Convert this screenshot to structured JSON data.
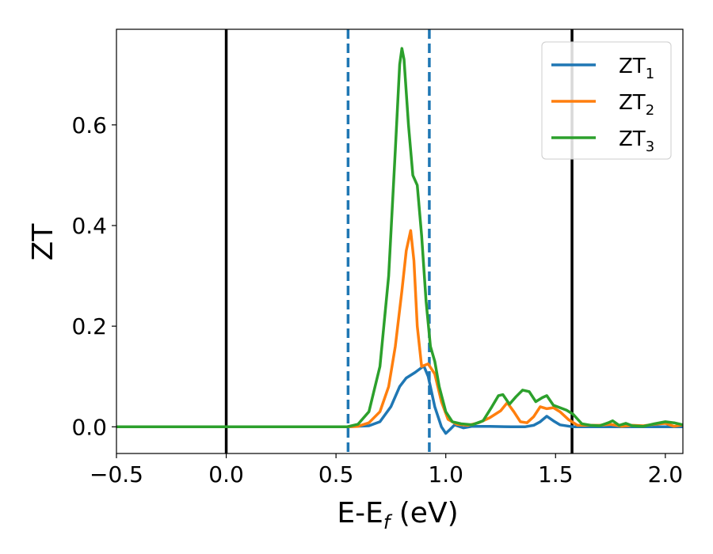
{
  "chart_data": {
    "type": "line",
    "xlabel_main": "E-E",
    "xlabel_sub": "f",
    "xlabel_unit": " (eV)",
    "ylabel": "ZT",
    "xlim": [
      -0.5,
      2.08
    ],
    "ylim": [
      -0.053,
      0.79
    ],
    "xticks": [
      -0.5,
      0.0,
      0.5,
      1.0,
      1.5,
      2.0
    ],
    "xtick_labels": [
      "−0.5",
      "0.0",
      "0.5",
      "1.0",
      "1.5",
      "2.0"
    ],
    "yticks": [
      0.0,
      0.2,
      0.4,
      0.6
    ],
    "ytick_labels": [
      "0.0",
      "0.2",
      "0.4",
      "0.6"
    ],
    "grid": false,
    "legend_position": "top-right",
    "vlines": [
      {
        "x": 0.0,
        "style": "solid",
        "color": "#000000"
      },
      {
        "x": 1.575,
        "style": "solid",
        "color": "#000000"
      },
      {
        "x": 0.555,
        "style": "dashed",
        "color": "#1f77b4"
      },
      {
        "x": 0.925,
        "style": "dashed",
        "color": "#1f77b4"
      }
    ],
    "series": [
      {
        "name": "ZT",
        "sub": "1",
        "color": "#1f77b4",
        "points": [
          [
            -0.5,
            0
          ],
          [
            0.55,
            0
          ],
          [
            0.65,
            0.002
          ],
          [
            0.7,
            0.01
          ],
          [
            0.75,
            0.04
          ],
          [
            0.79,
            0.08
          ],
          [
            0.82,
            0.097
          ],
          [
            0.86,
            0.108
          ],
          [
            0.9,
            0.121
          ],
          [
            0.92,
            0.1
          ],
          [
            0.95,
            0.04
          ],
          [
            0.98,
            0.0
          ],
          [
            1.0,
            -0.013
          ],
          [
            1.02,
            -0.005
          ],
          [
            1.04,
            0.004
          ],
          [
            1.08,
            -0.002
          ],
          [
            1.12,
            0.001
          ],
          [
            1.2,
            0.001
          ],
          [
            1.3,
            0.0
          ],
          [
            1.36,
            0.0
          ],
          [
            1.4,
            0.003
          ],
          [
            1.43,
            0.01
          ],
          [
            1.46,
            0.021
          ],
          [
            1.49,
            0.012
          ],
          [
            1.52,
            0.004
          ],
          [
            1.58,
            0.0
          ],
          [
            2.08,
            0.0
          ]
        ]
      },
      {
        "name": "ZT",
        "sub": "2",
        "color": "#ff7f0e",
        "points": [
          [
            -0.5,
            0
          ],
          [
            0.55,
            0
          ],
          [
            0.6,
            0.001
          ],
          [
            0.65,
            0.008
          ],
          [
            0.7,
            0.03
          ],
          [
            0.74,
            0.08
          ],
          [
            0.77,
            0.16
          ],
          [
            0.8,
            0.27
          ],
          [
            0.82,
            0.35
          ],
          [
            0.84,
            0.39
          ],
          [
            0.855,
            0.33
          ],
          [
            0.87,
            0.2
          ],
          [
            0.89,
            0.12
          ],
          [
            0.92,
            0.125
          ],
          [
            0.95,
            0.105
          ],
          [
            0.98,
            0.05
          ],
          [
            1.01,
            0.015
          ],
          [
            1.05,
            0.005
          ],
          [
            1.1,
            0.003
          ],
          [
            1.15,
            0.008
          ],
          [
            1.2,
            0.018
          ],
          [
            1.25,
            0.032
          ],
          [
            1.28,
            0.048
          ],
          [
            1.31,
            0.03
          ],
          [
            1.34,
            0.01
          ],
          [
            1.37,
            0.008
          ],
          [
            1.4,
            0.02
          ],
          [
            1.43,
            0.04
          ],
          [
            1.46,
            0.036
          ],
          [
            1.49,
            0.038
          ],
          [
            1.52,
            0.03
          ],
          [
            1.56,
            0.014
          ],
          [
            1.6,
            0.003
          ],
          [
            1.7,
            0.003
          ],
          [
            1.75,
            0.005
          ],
          [
            1.8,
            0.001
          ],
          [
            1.85,
            0.003
          ],
          [
            1.9,
            0.002
          ],
          [
            1.95,
            0.005
          ],
          [
            2.0,
            0.007
          ],
          [
            2.04,
            0.001
          ],
          [
            2.08,
            0.004
          ]
        ]
      },
      {
        "name": "ZT",
        "sub": "3",
        "color": "#2ca02c",
        "points": [
          [
            -0.5,
            0
          ],
          [
            0.55,
            0
          ],
          [
            0.6,
            0.005
          ],
          [
            0.65,
            0.03
          ],
          [
            0.7,
            0.12
          ],
          [
            0.74,
            0.3
          ],
          [
            0.77,
            0.55
          ],
          [
            0.79,
            0.72
          ],
          [
            0.8,
            0.752
          ],
          [
            0.81,
            0.73
          ],
          [
            0.83,
            0.6
          ],
          [
            0.85,
            0.5
          ],
          [
            0.87,
            0.48
          ],
          [
            0.89,
            0.38
          ],
          [
            0.91,
            0.25
          ],
          [
            0.93,
            0.16
          ],
          [
            0.95,
            0.13
          ],
          [
            0.97,
            0.08
          ],
          [
            1.0,
            0.03
          ],
          [
            1.03,
            0.01
          ],
          [
            1.07,
            0.006
          ],
          [
            1.12,
            0.004
          ],
          [
            1.17,
            0.012
          ],
          [
            1.21,
            0.04
          ],
          [
            1.24,
            0.062
          ],
          [
            1.26,
            0.064
          ],
          [
            1.29,
            0.045
          ],
          [
            1.32,
            0.06
          ],
          [
            1.35,
            0.073
          ],
          [
            1.38,
            0.07
          ],
          [
            1.41,
            0.05
          ],
          [
            1.44,
            0.058
          ],
          [
            1.46,
            0.062
          ],
          [
            1.49,
            0.043
          ],
          [
            1.52,
            0.038
          ],
          [
            1.55,
            0.033
          ],
          [
            1.58,
            0.025
          ],
          [
            1.62,
            0.006
          ],
          [
            1.66,
            0.003
          ],
          [
            1.7,
            0.002
          ],
          [
            1.74,
            0.008
          ],
          [
            1.76,
            0.012
          ],
          [
            1.79,
            0.003
          ],
          [
            1.82,
            0.007
          ],
          [
            1.85,
            0.002
          ],
          [
            1.9,
            0.001
          ],
          [
            1.95,
            0.006
          ],
          [
            2.0,
            0.01
          ],
          [
            2.04,
            0.008
          ],
          [
            2.08,
            0.004
          ]
        ]
      }
    ]
  }
}
